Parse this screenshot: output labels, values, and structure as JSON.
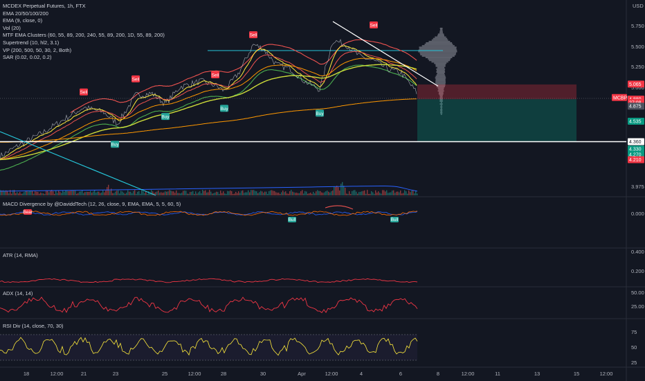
{
  "chart_data": {
    "type": "line",
    "title": "MCDEX Perpetual Futures, 1h, FTX",
    "currency": "USD",
    "overlays": [
      "EMA 20/50/100/200",
      "EMA (9, close, 0)",
      "Vol (20)",
      "MTF EMA Clusters (60, 55, 89, 200, 240, 55, 89, 200, 1D, 55, 89, 200)",
      "Supertrend (10, hl2, 3.1)",
      "VP (200, 500, 50, 30, 2, Both)",
      "SAR (0.02, 0.02, 0.2)"
    ],
    "price_axis": {
      "range": [
        3.85,
        5.95
      ],
      "ticks": [
        "5.750",
        "5.500",
        "5.250",
        "5.000",
        "3.975"
      ]
    },
    "price_tags": [
      {
        "label": "5.065",
        "value": 5.065,
        "color": "#f23645"
      },
      {
        "label": "MCBPERP",
        "value": 4.9,
        "color": "#f23645"
      },
      {
        "label": "4.880",
        "value": 4.88,
        "color": "#f23645"
      },
      {
        "label": "27:08",
        "value": 4.84,
        "color": "#f23645"
      },
      {
        "label": "4.875",
        "value": 4.795,
        "color": "#4c525e"
      },
      {
        "label": "4.535",
        "value": 4.61,
        "color": "#089981"
      },
      {
        "label": "4.360",
        "value": 4.36,
        "color": "#ffffff"
      },
      {
        "label": "4.330",
        "value": 4.27,
        "color": "#089981"
      },
      {
        "label": "4.270",
        "value": 4.205,
        "color": "#089981"
      },
      {
        "label": "4.210",
        "value": 4.14,
        "color": "#f23645"
      }
    ],
    "horizontal_level": 4.36,
    "trendline": {
      "from": {
        "x": 481,
        "price": 5.83
      },
      "to": {
        "x": 633,
        "price": 5.04
      }
    },
    "position_box": {
      "entry": 4.88,
      "stop": 5.06,
      "target": 4.36
    },
    "signals": [
      {
        "label": "Sell",
        "x": 121,
        "price": 4.96
      },
      {
        "label": "Sell",
        "x": 196,
        "price": 5.12
      },
      {
        "label": "Sell",
        "x": 311,
        "price": 5.17
      },
      {
        "label": "Sell",
        "x": 366,
        "price": 5.66
      },
      {
        "label": "Sell",
        "x": 540,
        "price": 5.78
      },
      {
        "label": "Buy",
        "x": 239,
        "price": 4.66
      },
      {
        "label": "Buy",
        "x": 324,
        "price": 4.76
      },
      {
        "label": "Buy",
        "x": 166,
        "price": 4.32
      },
      {
        "label": "Buy",
        "x": 462,
        "price": 4.7
      }
    ],
    "x_axis": {
      "ticks": [
        "18",
        "12:00",
        "21",
        "23",
        "25",
        "12:00",
        "28",
        "30",
        "Apr",
        "12:00",
        "4",
        "6",
        "8",
        "12:00",
        "11",
        "13",
        "15",
        "12:00"
      ],
      "tick_x": [
        38,
        82,
        121,
        167,
        238,
        281,
        323,
        380,
        436,
        479,
        522,
        579,
        633,
        676,
        719,
        776,
        833,
        876
      ]
    },
    "panes": [
      {
        "name": "MACD Divergence by @DaviddTech (12, 26, close, 9, EMA, EMA, 5, 5, 60, 5)",
        "ticks": [
          "0.000"
        ],
        "signals": [
          "Bull",
          "Bull",
          "Bear"
        ]
      },
      {
        "name": "ATR (14, RMA)",
        "ticks": [
          "0.400",
          "0.200"
        ]
      },
      {
        "name": "ADX (14, 14)",
        "ticks": [
          "50.00",
          "25.00"
        ]
      },
      {
        "name": "RSI Div (14, close, 70, 30)",
        "ticks": [
          "75",
          "50",
          "25"
        ],
        "overbought": 70,
        "oversold": 30
      }
    ]
  }
}
